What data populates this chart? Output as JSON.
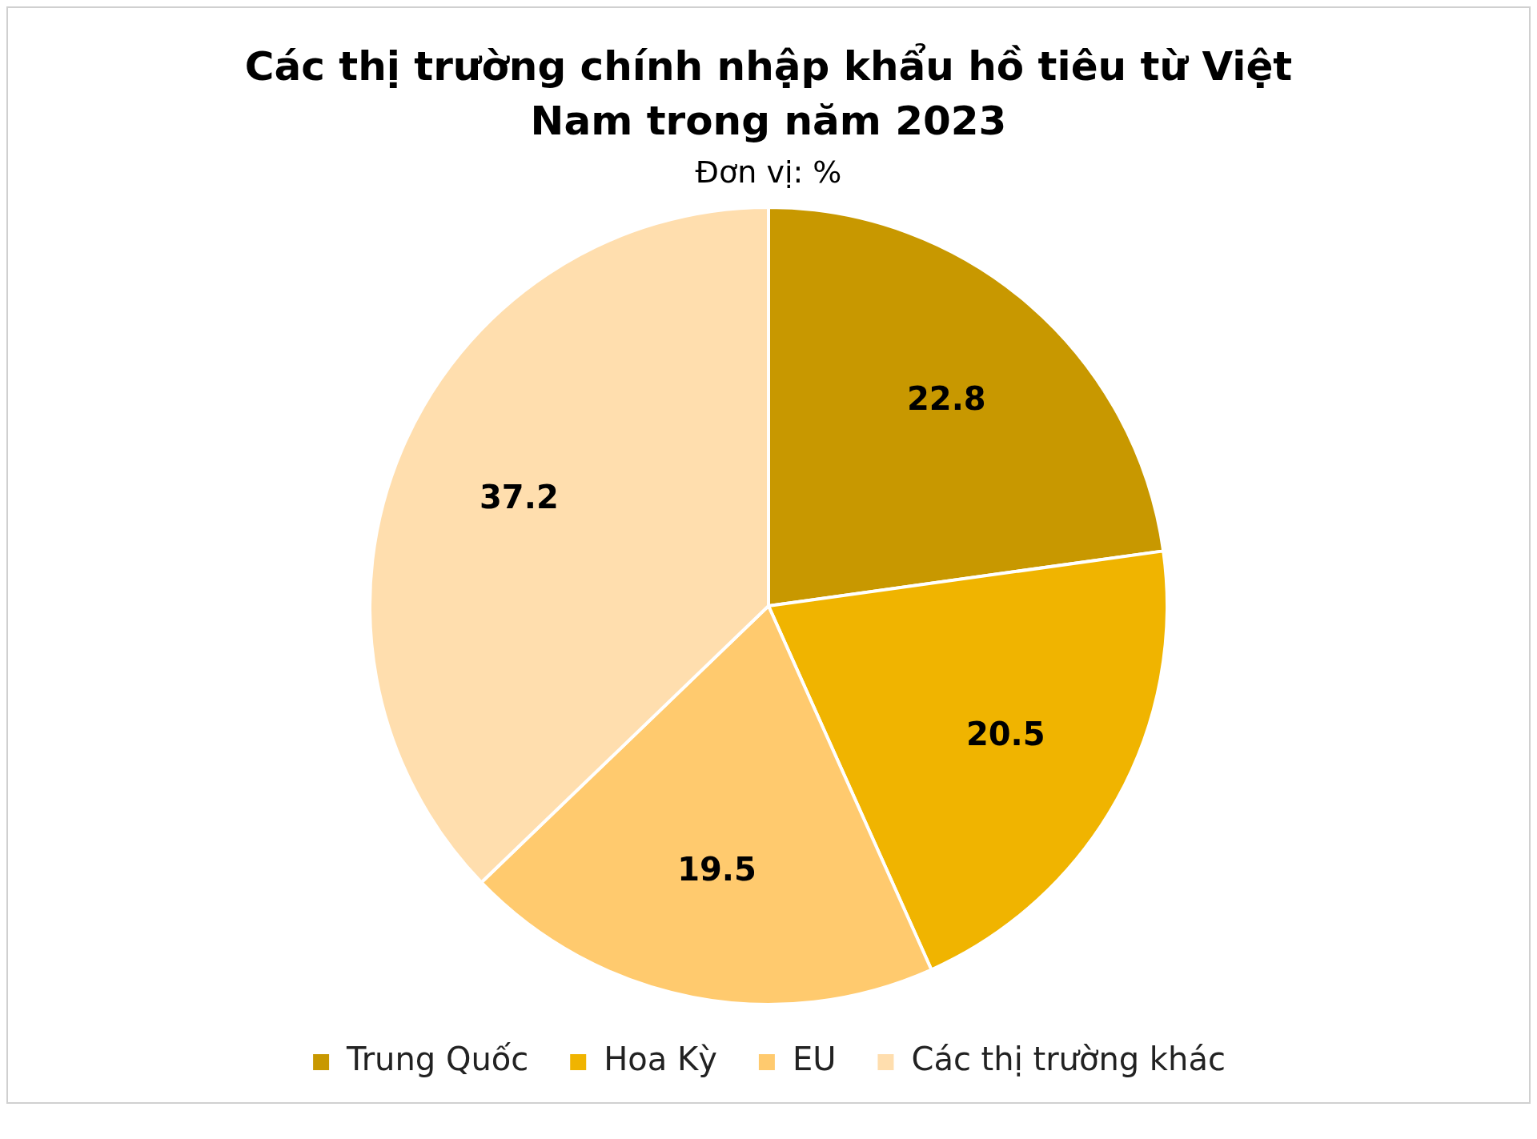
{
  "chart_data": {
    "type": "pie",
    "title": "Các thị trường chính nhập khẩu hồ tiêu từ Việt Nam trong năm 2023",
    "subtitle": "Đơn vị: %",
    "categories": [
      "Trung Quốc",
      "Hoa Kỳ",
      "EU",
      "Các thị trường khác"
    ],
    "values": [
      22.8,
      20.5,
      19.5,
      37.2
    ],
    "colors": [
      "#c89800",
      "#f0b400",
      "#ffca6e",
      "#ffdeae"
    ],
    "data_labels": true,
    "legend": "bottom"
  }
}
